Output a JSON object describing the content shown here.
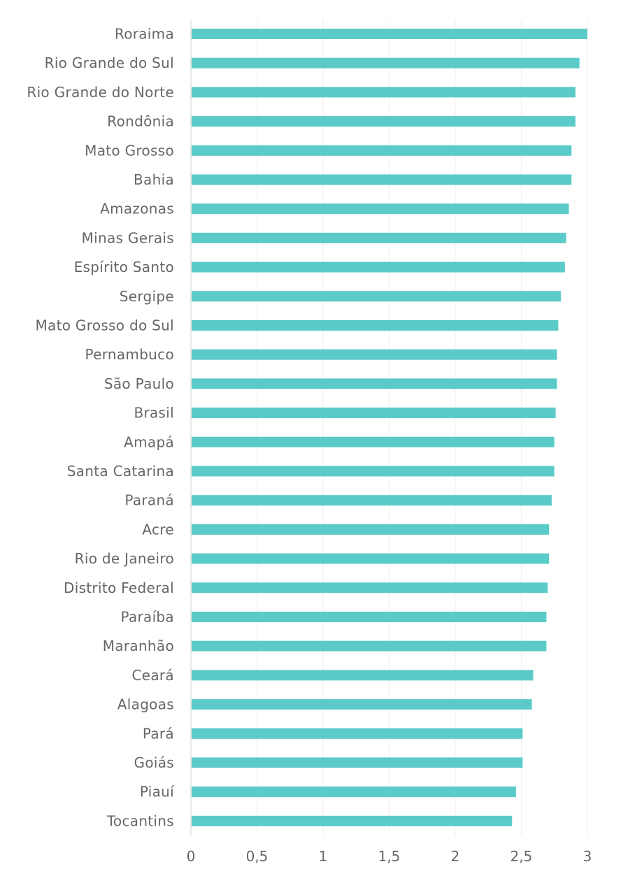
{
  "chart_data": {
    "type": "bar",
    "orientation": "horizontal",
    "categories": [
      "Roraima",
      "Rio Grande do Sul",
      "Rio Grande do Norte",
      "Rondônia",
      "Mato Grosso",
      "Bahia",
      "Amazonas",
      "Minas Gerais",
      "Espírito Santo",
      "Sergipe",
      "Mato Grosso do Sul",
      "Pernambuco",
      "São Paulo",
      "Brasil",
      "Amapá",
      "Santa Catarina",
      "Paraná",
      "Acre",
      "Rio de Janeiro",
      "Distrito Federal",
      "Paraíba",
      "Maranhão",
      "Ceará",
      "Alagoas",
      "Pará",
      "Goiás",
      "Piauí",
      "Tocantins"
    ],
    "values": [
      3.0,
      2.94,
      2.91,
      2.91,
      2.88,
      2.88,
      2.86,
      2.84,
      2.83,
      2.8,
      2.78,
      2.77,
      2.77,
      2.76,
      2.75,
      2.75,
      2.73,
      2.71,
      2.71,
      2.7,
      2.69,
      2.69,
      2.59,
      2.58,
      2.51,
      2.51,
      2.46,
      2.43
    ],
    "xlim": [
      0,
      3
    ],
    "xticks": [
      0,
      0.5,
      1,
      1.5,
      2,
      2.5,
      3
    ],
    "xtick_labels": [
      "0",
      "0,5",
      "1",
      "1,5",
      "2",
      "2,5",
      "3"
    ],
    "bar_color": "#5bcbc9",
    "grid": true,
    "legend": false
  }
}
